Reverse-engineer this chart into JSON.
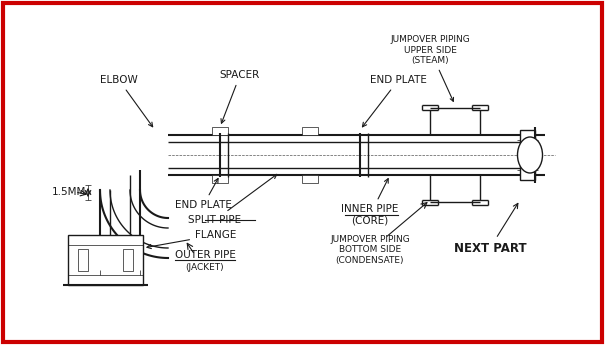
{
  "bg_color": "#f5f5f0",
  "border_color": "#cc0000",
  "line_color": "#1a1a1a",
  "lw": 1.0,
  "lw_thin": 0.5,
  "lw_thick": 1.5,
  "labels": {
    "elbow": "ELBOW",
    "spacer": "SPACER",
    "end_plate_top": "END PLATE",
    "jumpover_upper": "JUMPOVER PIPING\nUPPER SIDE\n(STEAM)",
    "end_plate_left": "END PLATE",
    "split_pipe": "SPLIT PIPE",
    "flange": "FLANGE",
    "outer_pipe": "OUTER PIPE\n(JACKET)",
    "inner_pipe": "INNER PIPE\n(CORE)",
    "jumpover_lower": "JUMPOVER PIPING\nBOTTOM SIDE\n(CONDENSATE)",
    "next_part": "NEXT PART",
    "dim_15mm": "1.5MM"
  },
  "font_size": 7.5,
  "font_size_small": 6.5
}
